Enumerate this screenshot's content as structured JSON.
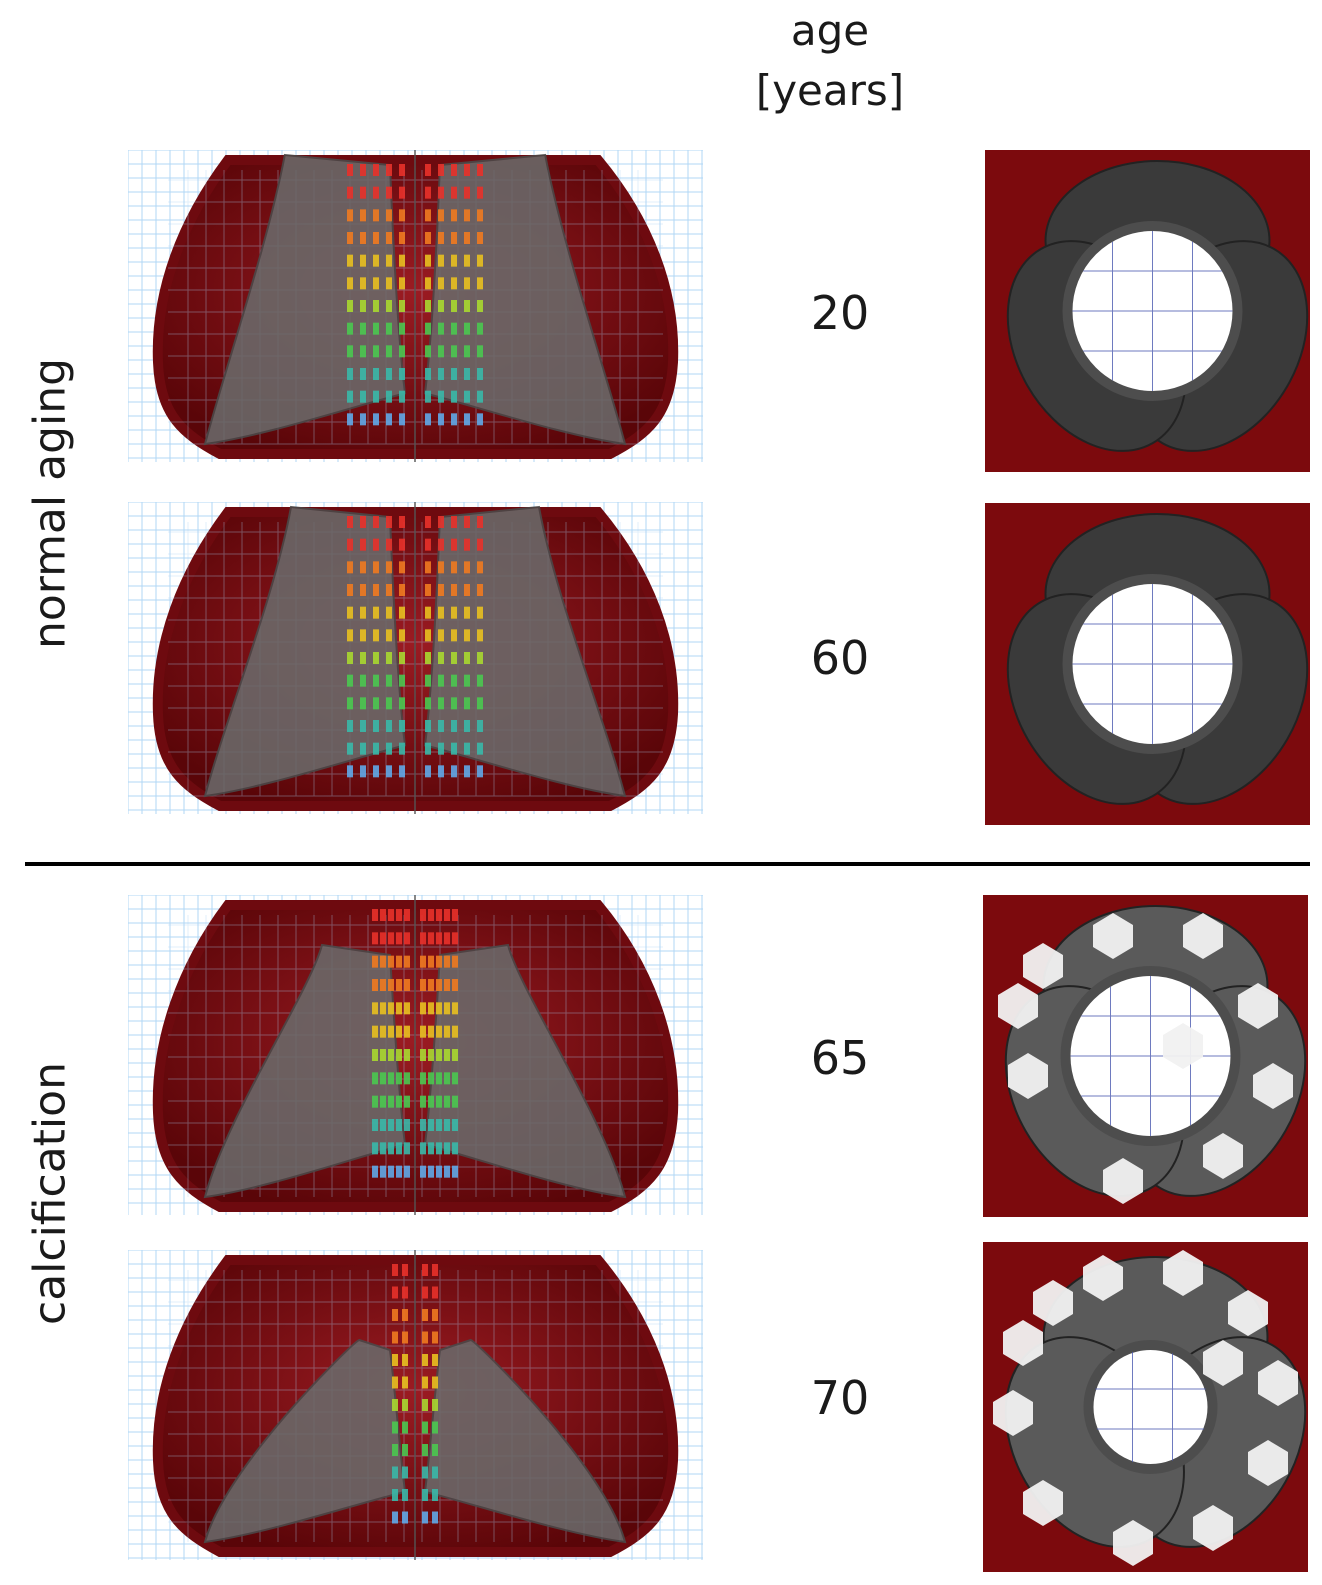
{
  "header": {
    "line1": "age",
    "line2": "[years]"
  },
  "groups": [
    {
      "label": "normal aging"
    },
    {
      "label": "calcification"
    }
  ],
  "rows": [
    {
      "age": "20"
    },
    {
      "age": "60"
    },
    {
      "age": "65"
    },
    {
      "age": "70"
    }
  ],
  "colors": {
    "tissue": "#7a0a0e",
    "tissue_inner": "#9b1b22",
    "leaflet": "#6a6a6a",
    "grid": "#a9d3f5",
    "calcification": "#f2f2f2",
    "background_panel": "#7c0a0d"
  }
}
